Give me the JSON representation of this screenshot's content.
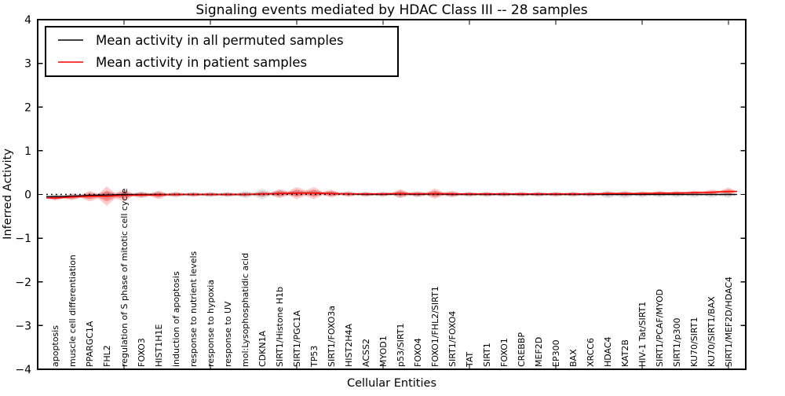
{
  "figure": {
    "background": "#ffffff",
    "axis_color": "#000000"
  },
  "chart_data": {
    "type": "violin",
    "title": "Signaling events mediated by HDAC Class III -- 28 samples",
    "xlabel": "Cellular Entities",
    "ylabel": "Inferred Activity",
    "ylim": [
      -4,
      4
    ],
    "xlim": [
      0,
      41
    ],
    "grid": false,
    "yticks": [
      {
        "value": 4,
        "label": "4"
      },
      {
        "value": 3,
        "label": "3"
      },
      {
        "value": 2,
        "label": "2"
      },
      {
        "value": 1,
        "label": "1"
      },
      {
        "value": 0,
        "label": "0"
      },
      {
        "value": -1,
        "label": "−1"
      },
      {
        "value": -2,
        "label": "−2"
      },
      {
        "value": -3,
        "label": "−3"
      },
      {
        "value": -4,
        "label": "−4"
      }
    ],
    "xtick_values": [
      5,
      10,
      15,
      20,
      25,
      30,
      35,
      40
    ],
    "zero_line": {
      "y": 0,
      "style": "dotted",
      "color": "#000000"
    },
    "legend": {
      "position": "upper-left",
      "entries": [
        {
          "label": "Mean activity in all permuted samples",
          "color": "#000000"
        },
        {
          "label": "Mean activity in patient samples",
          "color": "#ff0000"
        }
      ]
    },
    "categories": [
      "apoptosis",
      "muscle cell differentiation",
      "PPARGC1A",
      "FHL2",
      "regulation of S phase of mitotic cell cycle",
      "FOXO3",
      "HIST1H1E",
      "induction of apoptosis",
      "response to nutrient levels",
      "response to hypoxia",
      "response to UV",
      "mol:Lysophosphatidic acid",
      "CDKN1A",
      "SIRT1/Histone H1b",
      "SIRT1/PGC1A",
      "TP53",
      "SIRT1/FOXO3a",
      "HIST2H4A",
      "ACSS2",
      "MYOD1",
      "p53/SIRT1",
      "FOXO4",
      "FOXO1/FHL2/SIRT1",
      "SIRT1/FOXO4",
      "TAT",
      "SIRT1",
      "FOXO1",
      "CREBBP",
      "MEF2D",
      "EP300",
      "BAX",
      "XRCC6",
      "HDAC4",
      "KAT2B",
      "HIV-1 Tat/SIRT1",
      "SIRT1/PCAF/MYOD",
      "SIRT1/p300",
      "KU70/SIRT1",
      "KU70/SIRT1/BAX",
      "SIRT1/MEF2D/HDAC4"
    ],
    "series": [
      {
        "name": "Mean activity in all permuted samples",
        "color": "#000000",
        "values": [
          -0.05,
          -0.04,
          -0.02,
          -0.01,
          0,
          0,
          0,
          0,
          0,
          0,
          0,
          0,
          0.01,
          0.02,
          0.03,
          0.03,
          0.02,
          0.01,
          0,
          0,
          0.01,
          0,
          0.01,
          0,
          0,
          0,
          0,
          0,
          0,
          0,
          0,
          0,
          0,
          0,
          0,
          0,
          0,
          0,
          0,
          0
        ]
      },
      {
        "name": "Mean activity in patient samples",
        "color": "#ff0000",
        "values": [
          -0.08,
          -0.06,
          -0.04,
          -0.04,
          -0.02,
          -0.01,
          -0.01,
          0,
          0,
          0,
          0,
          0,
          0.01,
          0.02,
          0.03,
          0.03,
          0.02,
          0.01,
          0.01,
          0.01,
          0.02,
          0.01,
          0.02,
          0.01,
          0.01,
          0.01,
          0.01,
          0.01,
          0.01,
          0.01,
          0.01,
          0.01,
          0.02,
          0.02,
          0.02,
          0.03,
          0.03,
          0.04,
          0.05,
          0.07
        ]
      }
    ],
    "bands": [
      {
        "name": "permuted-sample-distribution",
        "color": "#787878",
        "fill_opacity": 0.18,
        "center_series": 0,
        "half_widths": [
          0.07,
          0.07,
          0.08,
          0.1,
          0.08,
          0.07,
          0.07,
          0.06,
          0.06,
          0.06,
          0.06,
          0.09,
          0.13,
          0.09,
          0.08,
          0.08,
          0.07,
          0.06,
          0.06,
          0.06,
          0.09,
          0.07,
          0.08,
          0.07,
          0.06,
          0.06,
          0.06,
          0.06,
          0.06,
          0.06,
          0.06,
          0.06,
          0.09,
          0.09,
          0.07,
          0.07,
          0.07,
          0.07,
          0.07,
          0.08
        ]
      },
      {
        "name": "patient-sample-distribution",
        "color": "#ff0000",
        "fill_opacity": 0.2,
        "center_series": 1,
        "half_widths": [
          0.06,
          0.07,
          0.12,
          0.22,
          0.14,
          0.07,
          0.1,
          0.06,
          0.05,
          0.05,
          0.05,
          0.05,
          0.06,
          0.1,
          0.14,
          0.14,
          0.09,
          0.06,
          0.05,
          0.05,
          0.1,
          0.06,
          0.12,
          0.07,
          0.05,
          0.05,
          0.05,
          0.05,
          0.05,
          0.05,
          0.05,
          0.05,
          0.05,
          0.05,
          0.05,
          0.05,
          0.05,
          0.05,
          0.06,
          0.09
        ]
      }
    ]
  }
}
